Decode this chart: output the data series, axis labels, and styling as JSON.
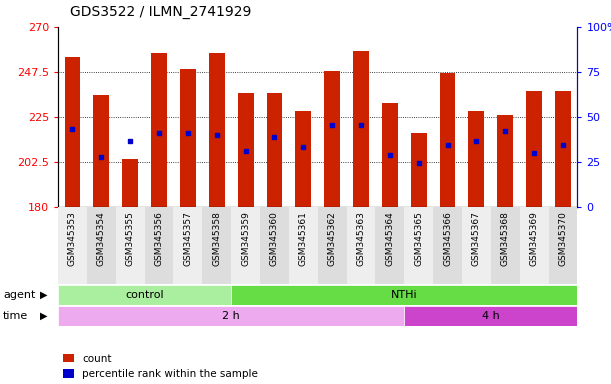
{
  "title": "GDS3522 / ILMN_2741929",
  "samples": [
    "GSM345353",
    "GSM345354",
    "GSM345355",
    "GSM345356",
    "GSM345357",
    "GSM345358",
    "GSM345359",
    "GSM345360",
    "GSM345361",
    "GSM345362",
    "GSM345363",
    "GSM345364",
    "GSM345365",
    "GSM345366",
    "GSM345367",
    "GSM345368",
    "GSM345369",
    "GSM345370"
  ],
  "bar_tops": [
    255,
    236,
    204,
    257,
    249,
    257,
    237,
    237,
    228,
    248,
    258,
    232,
    217,
    247,
    228,
    226,
    238,
    238
  ],
  "blue_vals": [
    219,
    205,
    213,
    217,
    217,
    216,
    208,
    215,
    210,
    221,
    221,
    206,
    202,
    211,
    213,
    218,
    207,
    211
  ],
  "ymin": 180,
  "ymax": 270,
  "yticks": [
    180,
    202.5,
    225,
    247.5,
    270
  ],
  "ytick_labels": [
    "180",
    "202.5",
    "225",
    "247.5",
    "270"
  ],
  "right_yticks": [
    0,
    25,
    50,
    75,
    100
  ],
  "right_ytick_labels": [
    "0",
    "25",
    "50",
    "75",
    "100%"
  ],
  "bar_color": "#cc2200",
  "blue_color": "#0000cc",
  "bg_color": "#ffffff",
  "plot_bg": "#ffffff",
  "control_n": 6,
  "nthi_n": 12,
  "time_2h_n": 12,
  "time_4h_n": 6,
  "control_color": "#aaeea0",
  "nthi_color": "#66dd44",
  "time_2h_color": "#eeaaee",
  "time_4h_color": "#cc44cc",
  "col_bg_even": "#dddddd",
  "col_bg_odd": "#eeeeee",
  "bar_width": 0.55,
  "tick_fontsize": 7
}
